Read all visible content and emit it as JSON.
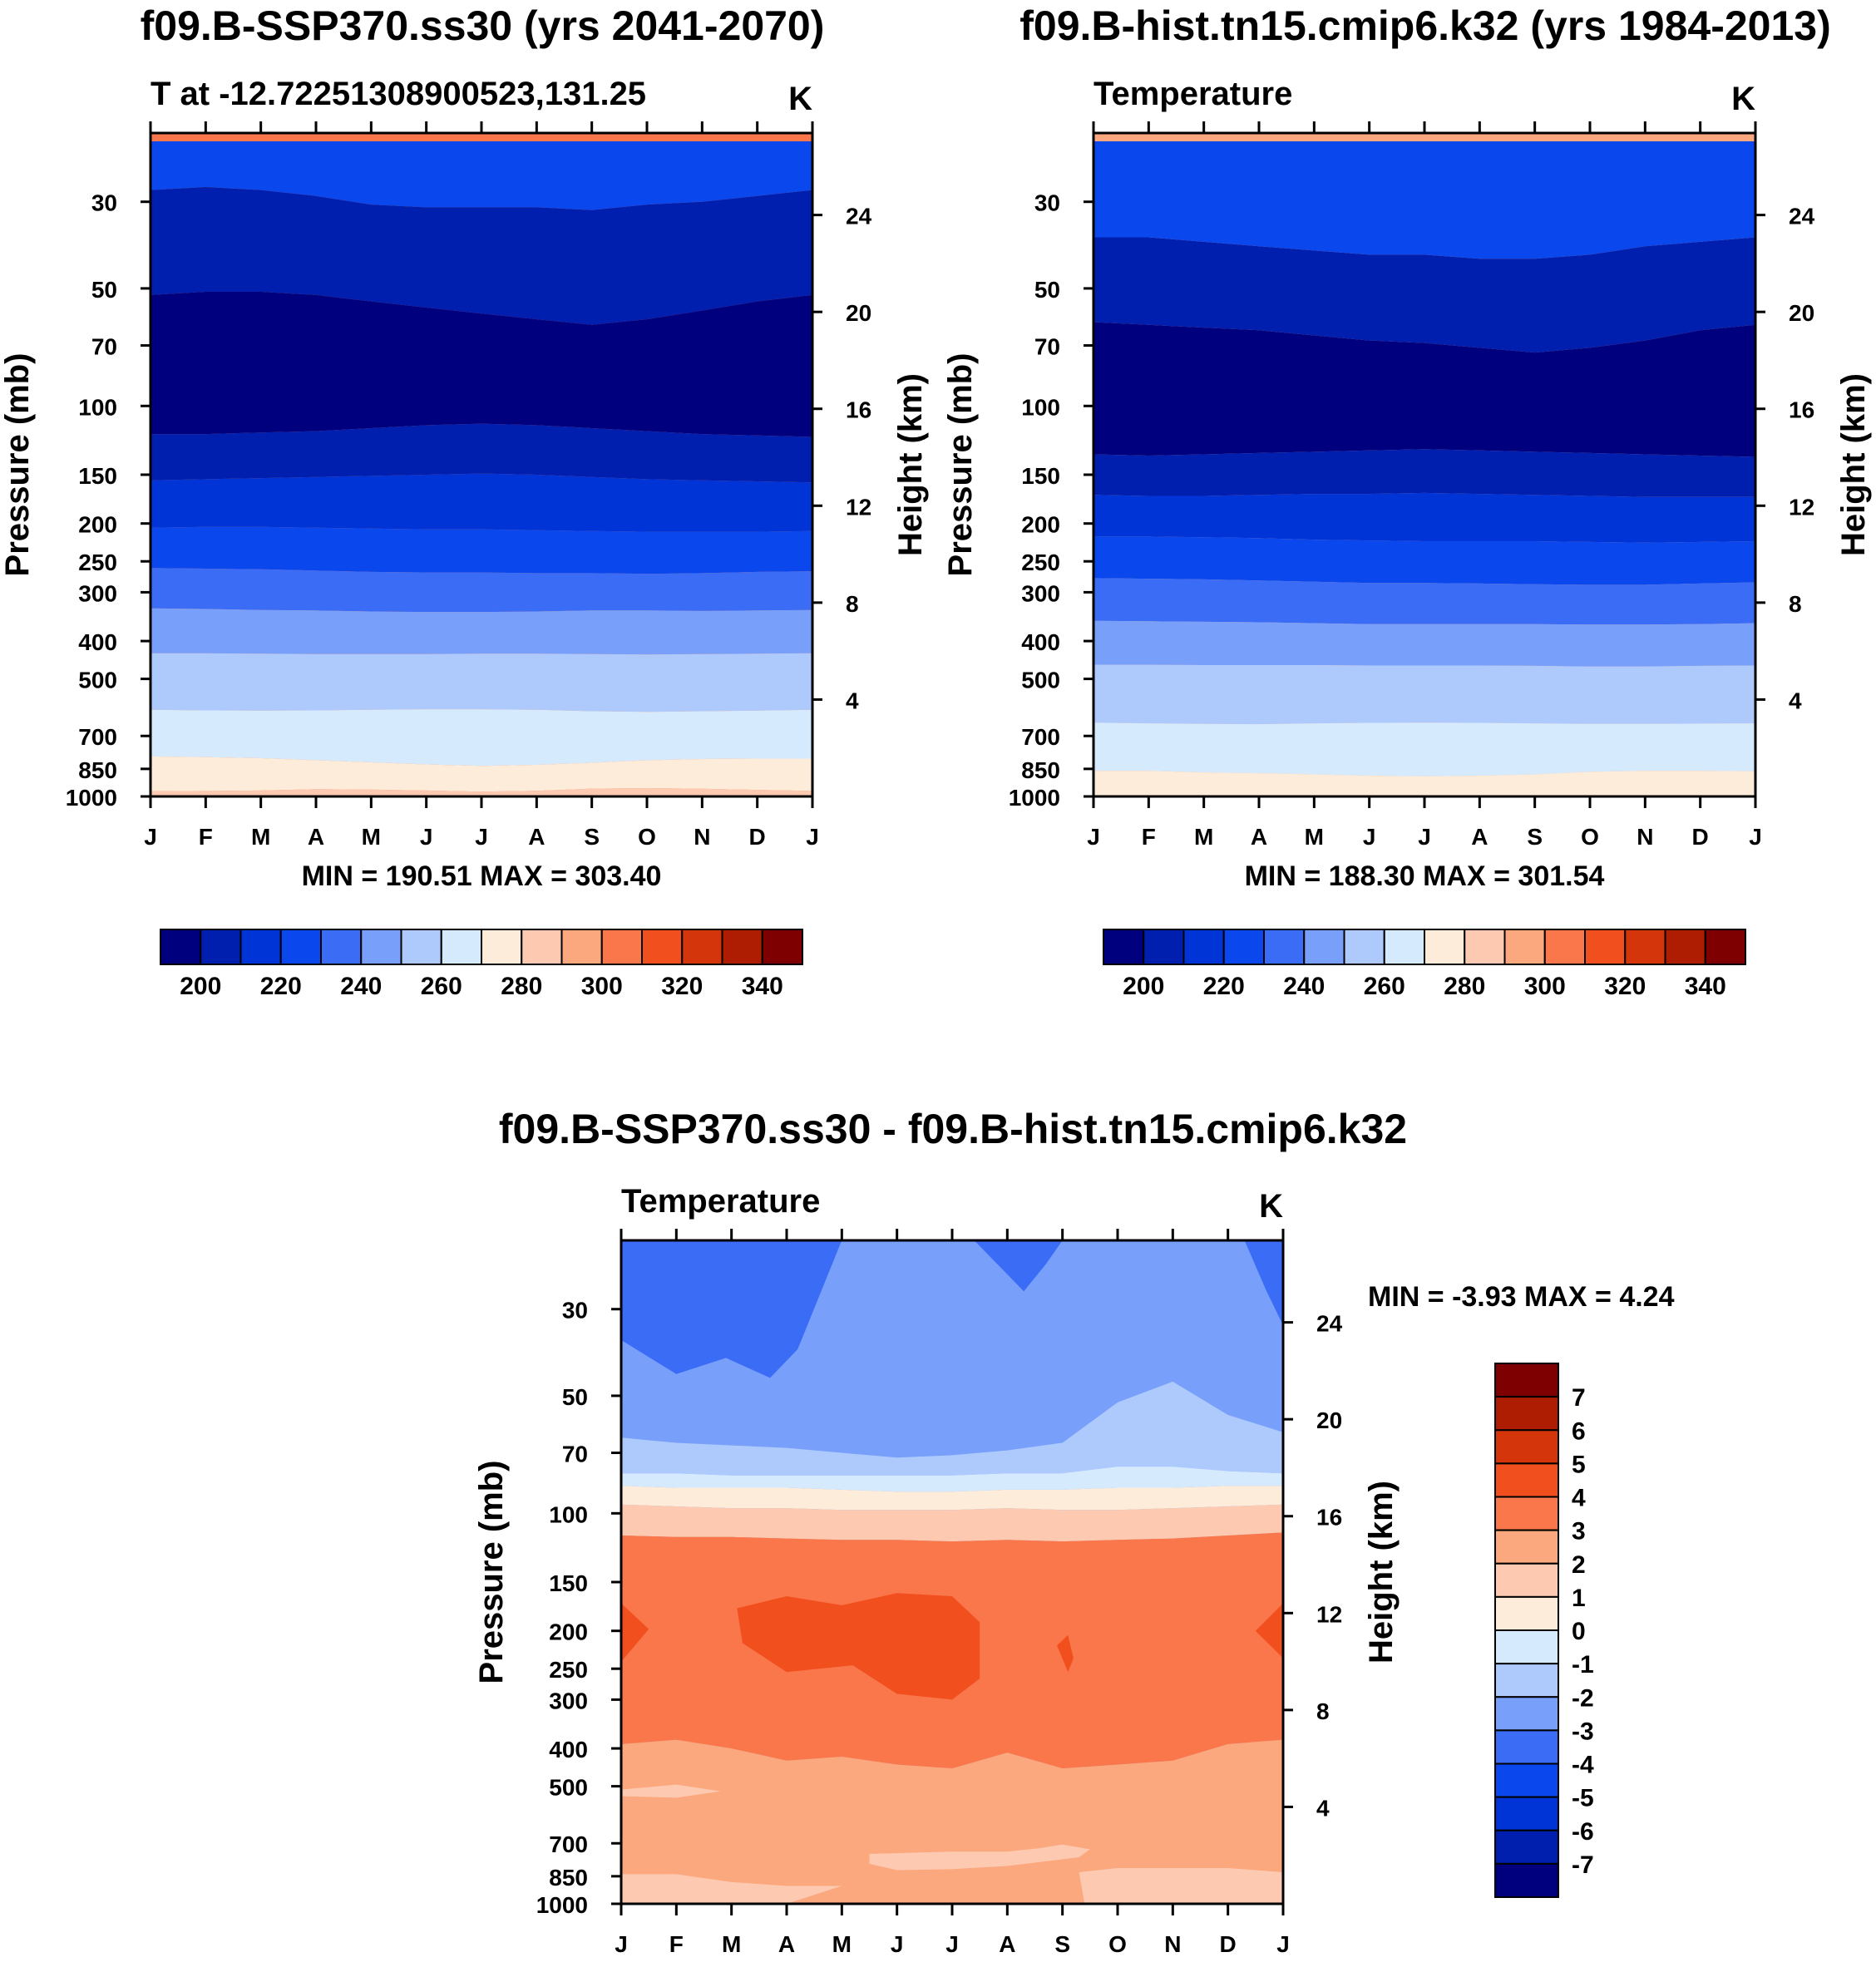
{
  "colors": {
    "temp_scale": [
      "#00007f",
      "#001fae",
      "#0034d6",
      "#0a48ee",
      "#3b6cf6",
      "#78a0fa",
      "#aecafd",
      "#d6eafe",
      "#fdecd9",
      "#fdcab1",
      "#fba87f",
      "#f9774a",
      "#f24f1f",
      "#d5350b",
      "#ae1d02",
      "#7f0000"
    ],
    "diff_scale": [
      "#00007f",
      "#001fae",
      "#0034d6",
      "#0a48ee",
      "#3b6cf6",
      "#78a0fa",
      "#aecafd",
      "#d6eafe",
      "#fdecd9",
      "#fdcab1",
      "#fba87f",
      "#f9774a",
      "#f24f1f",
      "#d5350b",
      "#ae1d02",
      "#7f0000"
    ]
  },
  "panels": {
    "p1": {
      "title": "f09.B-SSP370.ss30 (yrs 2041-2070)",
      "subtitle": "T at -12.72251308900523,131.25",
      "unit": "K",
      "minmax": "MIN = 190.51 MAX = 303.40"
    },
    "p2": {
      "title": "f09.B-hist.tn15.cmip6.k32 (yrs 1984-2013)",
      "subtitle": "Temperature",
      "unit": "K",
      "minmax": "MIN = 188.30 MAX = 301.54"
    },
    "p3": {
      "title": "f09.B-SSP370.ss30 - f09.B-hist.tn15.cmip6.k32",
      "subtitle": "Temperature",
      "unit": "K",
      "minmax": "MIN =  -3.93 MAX =    4.24"
    }
  },
  "chart_data": [
    {
      "id": "p1",
      "type": "heatmap",
      "title": "f09.B-SSP370.ss30 (yrs 2041-2070)",
      "subtitle": "T at -12.72251308900523,131.25",
      "xlabel": "",
      "ylabel": "Pressure (mb)",
      "y2label": "Height (km)",
      "xticks": [
        "J",
        "F",
        "M",
        "A",
        "M",
        "J",
        "J",
        "A",
        "S",
        "O",
        "N",
        "D",
        "J"
      ],
      "yticks": [
        30,
        50,
        70,
        100,
        150,
        200,
        250,
        300,
        400,
        500,
        700,
        850,
        1000
      ],
      "yticks_right": [
        4,
        8,
        12,
        16,
        20,
        24
      ],
      "ylim": [
        20,
        1000
      ],
      "y_scale": "log",
      "contour_levels": [
        200,
        210,
        220,
        230,
        240,
        250,
        260,
        270,
        280,
        290,
        300
      ],
      "colorbar_labels": [
        "200",
        "220",
        "240",
        "260",
        "280",
        "300",
        "320",
        "340"
      ],
      "boundaries_mb": [
        [
          21,
          21,
          21,
          21,
          21,
          21,
          21,
          21,
          21,
          21,
          21,
          21,
          21
        ],
        [
          28,
          27.5,
          28,
          29,
          30.5,
          31,
          31,
          31,
          31.5,
          30.5,
          30,
          29,
          28
        ],
        [
          52,
          51,
          51,
          52,
          54,
          56,
          58,
          60,
          62,
          60,
          57,
          54,
          52
        ],
        [
          118,
          118,
          117,
          116,
          114,
          112,
          111,
          112,
          114,
          116,
          118,
          119,
          120
        ],
        [
          155,
          154,
          153,
          152,
          151,
          150,
          149,
          150,
          152,
          154,
          155,
          156,
          157
        ],
        [
          205,
          204,
          204,
          205,
          206,
          207,
          207,
          208,
          209,
          210,
          210,
          210,
          209
        ],
        [
          260,
          261,
          262,
          264,
          266,
          267,
          267,
          268,
          268,
          269,
          268,
          266,
          265
        ],
        [
          330,
          331,
          333,
          334,
          336,
          337,
          337,
          336,
          334,
          334,
          335,
          334,
          333
        ],
        [
          430,
          430,
          431,
          432,
          432,
          432,
          431,
          431,
          432,
          433,
          432,
          431,
          430
        ],
        [
          600,
          602,
          603,
          602,
          600,
          598,
          598,
          600,
          605,
          607,
          605,
          603,
          600
        ],
        [
          790,
          793,
          798,
          808,
          818,
          828,
          835,
          830,
          820,
          808,
          802,
          800,
          800
        ],
        [
          970,
          968,
          966,
          958,
          960,
          966,
          972,
          967,
          955,
          952,
          956,
          962,
          968
        ]
      ],
      "min": 190.51,
      "max": 303.4
    },
    {
      "id": "p2",
      "type": "heatmap",
      "title": "f09.B-hist.tn15.cmip6.k32 (yrs 1984-2013)",
      "subtitle": "Temperature",
      "xlabel": "",
      "ylabel": "Pressure (mb)",
      "y2label": "Height (km)",
      "xticks": [
        "J",
        "F",
        "M",
        "A",
        "M",
        "J",
        "J",
        "A",
        "S",
        "O",
        "N",
        "D",
        "J"
      ],
      "yticks": [
        30,
        50,
        70,
        100,
        150,
        200,
        250,
        300,
        400,
        500,
        700,
        850,
        1000
      ],
      "yticks_right": [
        4,
        8,
        12,
        16,
        20,
        24
      ],
      "ylim": [
        20,
        1000
      ],
      "y_scale": "log",
      "contour_levels": [
        200,
        210,
        220,
        230,
        240,
        250,
        260,
        270,
        280,
        290
      ],
      "colorbar_labels": [
        "200",
        "220",
        "240",
        "260",
        "280",
        "300",
        "320",
        "340"
      ],
      "boundaries_mb": [
        [
          21,
          21,
          21,
          21,
          21,
          21,
          21,
          21,
          21,
          21,
          21,
          21,
          21
        ],
        [
          37,
          37,
          38,
          39,
          40,
          41,
          41,
          42,
          42,
          41,
          39,
          38,
          37
        ],
        [
          61,
          62,
          63,
          64,
          66,
          68,
          69,
          71,
          73,
          71,
          68,
          64,
          62
        ],
        [
          133,
          134,
          133,
          132,
          131,
          130,
          129,
          130,
          131,
          132,
          133,
          134,
          135
        ],
        [
          169,
          170,
          170,
          169,
          168,
          168,
          167,
          168,
          169,
          170,
          171,
          171,
          171
        ],
        [
          216,
          216,
          217,
          218,
          220,
          221,
          222,
          222,
          222,
          223,
          224,
          223,
          222
        ],
        [
          276,
          277,
          278,
          280,
          282,
          284,
          284,
          285,
          286,
          287,
          287,
          285,
          283
        ],
        [
          355,
          356,
          357,
          358,
          360,
          362,
          362,
          362,
          362,
          363,
          363,
          362,
          360
        ],
        [
          460,
          460,
          461,
          461,
          461,
          462,
          462,
          462,
          463,
          465,
          465,
          463,
          462
        ],
        [
          647,
          650,
          652,
          653,
          650,
          648,
          647,
          648,
          650,
          652,
          652,
          651,
          650
        ],
        [
          860,
          860,
          868,
          872,
          878,
          885,
          888,
          885,
          878,
          865,
          860,
          860,
          862
        ]
      ],
      "min": 188.3,
      "max": 301.54
    },
    {
      "id": "p3",
      "type": "heatmap",
      "title": "f09.B-SSP370.ss30 - f09.B-hist.tn15.cmip6.k32",
      "subtitle": "Temperature",
      "xlabel": "",
      "ylabel": "Pressure (mb)",
      "y2label": "Height (km)",
      "xticks": [
        "J",
        "F",
        "M",
        "A",
        "M",
        "J",
        "J",
        "A",
        "S",
        "O",
        "N",
        "D",
        "J"
      ],
      "yticks": [
        30,
        50,
        70,
        100,
        150,
        200,
        250,
        300,
        400,
        500,
        700,
        850,
        1000
      ],
      "yticks_right": [
        4,
        8,
        12,
        16,
        20,
        24
      ],
      "ylim": [
        20,
        1000
      ],
      "y_scale": "log",
      "contour_levels": [
        -3,
        -2,
        -1,
        0,
        1,
        2,
        3,
        4
      ],
      "colorbar_labels": [
        "7",
        "6",
        "5",
        "4",
        "3",
        "2",
        "1",
        "0",
        "-1",
        "-2",
        "-3",
        "-4",
        "-5",
        "-6",
        "-7"
      ],
      "layers_bottom_to_top": [
        "2",
        "3",
        "4",
        "3",
        "2",
        "1",
        "0",
        "-1",
        "-2",
        "-3"
      ],
      "min": -3.93,
      "max": 4.24
    }
  ]
}
